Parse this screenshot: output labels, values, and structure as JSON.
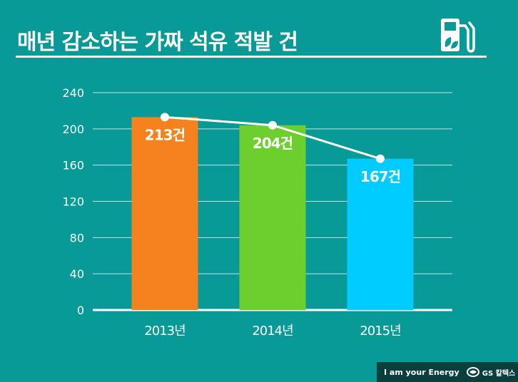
{
  "page": {
    "title": "매년 감소하는 가짜 석유 적발 건",
    "icon": "fuel-pump-leaf-icon",
    "colors": {
      "background": "#079a96",
      "footer": "#0b3f3d",
      "line": "#ffffff"
    }
  },
  "chart_data": {
    "type": "bar",
    "title": "매년 감소하는 가짜 석유 적발 건",
    "categories": [
      "2013년",
      "2014년",
      "2015년"
    ],
    "values": [
      213,
      204,
      167
    ],
    "value_labels": [
      "213건",
      "204건",
      "167건"
    ],
    "bar_colors": [
      "#f5821f",
      "#6ccf2e",
      "#00ccff"
    ],
    "overlay_line": true,
    "ylim": [
      0,
      240
    ],
    "yticks": [
      0,
      40,
      80,
      120,
      160,
      200,
      240
    ],
    "grid": true,
    "xlabel": "",
    "ylabel": ""
  },
  "footer": {
    "slogan": "I am your Energy",
    "brand": "GS 칼텍스",
    "brand_icon": "gs-caltex-logo-icon"
  }
}
